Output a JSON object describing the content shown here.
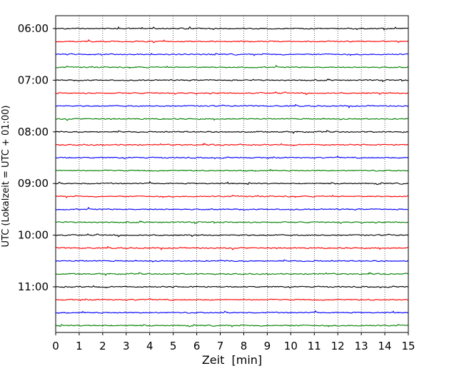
{
  "chart_data": {
    "type": "line",
    "title": "",
    "xlabel": "Zeit  [min]",
    "ylabel": "UTC (Lokalzeit = UTC + 01:00)",
    "xlim": [
      0,
      15
    ],
    "x_ticks": [
      "0",
      "1",
      "2",
      "3",
      "4",
      "5",
      "6",
      "7",
      "8",
      "9",
      "10",
      "11",
      "12",
      "13",
      "14",
      "15"
    ],
    "y_tick_labels": [
      "06:00",
      "07:00",
      "08:00",
      "09:00",
      "10:00",
      "11:00"
    ],
    "trace_start_times": [
      "06:00",
      "06:15",
      "06:30",
      "06:45",
      "07:00",
      "07:15",
      "07:30",
      "07:45",
      "08:00",
      "08:15",
      "08:30",
      "08:45",
      "09:00",
      "09:15",
      "09:30",
      "09:45",
      "10:00",
      "10:15",
      "10:30",
      "10:45",
      "11:00",
      "11:15",
      "11:30",
      "11:45"
    ],
    "trace_duration_min": 15,
    "trace_color_cycle": [
      "#000000",
      "#ff0000",
      "#0000ff",
      "#008000"
    ],
    "grid": "vertical dotted lines at each minute",
    "legend": "none"
  }
}
